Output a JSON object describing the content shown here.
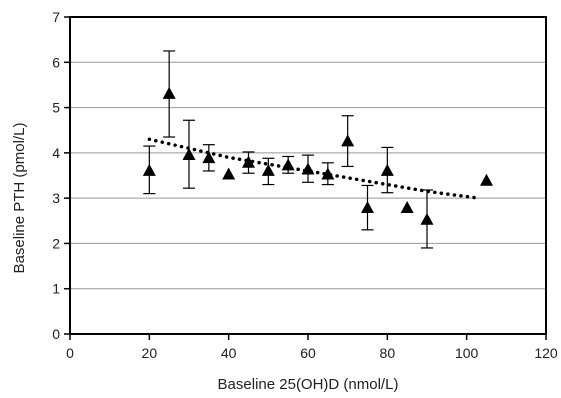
{
  "chart_data": {
    "type": "scatter",
    "title": "",
    "xlabel": "Baseline 25(OH)D (nmol/L)",
    "ylabel": "Baseline PTH (pmol/L)",
    "xlim": [
      0,
      120
    ],
    "ylim": [
      0,
      7
    ],
    "x_ticks": [
      0,
      20,
      40,
      60,
      80,
      100,
      120
    ],
    "y_ticks": [
      0,
      1,
      2,
      3,
      4,
      5,
      6,
      7
    ],
    "grid": "horizontal",
    "legend": "none",
    "marker": "triangle",
    "colors": {
      "marker": "#000000",
      "grid": "#999999",
      "axis": "#000000",
      "trend": "#000000"
    },
    "points": [
      {
        "x": 20,
        "y": 3.6,
        "err_low": 3.1,
        "err_high": 4.15
      },
      {
        "x": 25,
        "y": 5.3,
        "err_low": 4.35,
        "err_high": 6.25
      },
      {
        "x": 30,
        "y": 3.95,
        "err_low": 3.22,
        "err_high": 4.72
      },
      {
        "x": 35,
        "y": 3.88,
        "err_low": 3.6,
        "err_high": 4.18
      },
      {
        "x": 40,
        "y": 3.52,
        "err_low": null,
        "err_high": null
      },
      {
        "x": 45,
        "y": 3.78,
        "err_low": 3.55,
        "err_high": 4.02
      },
      {
        "x": 50,
        "y": 3.6,
        "err_low": 3.3,
        "err_high": 3.88
      },
      {
        "x": 55,
        "y": 3.72,
        "err_low": 3.55,
        "err_high": 3.92
      },
      {
        "x": 60,
        "y": 3.63,
        "err_low": 3.35,
        "err_high": 3.95
      },
      {
        "x": 65,
        "y": 3.52,
        "err_low": 3.3,
        "err_high": 3.78
      },
      {
        "x": 70,
        "y": 4.25,
        "err_low": 3.7,
        "err_high": 4.82
      },
      {
        "x": 75,
        "y": 2.78,
        "err_low": 2.3,
        "err_high": 3.28
      },
      {
        "x": 80,
        "y": 3.6,
        "err_low": 3.12,
        "err_high": 4.12
      },
      {
        "x": 85,
        "y": 2.78,
        "err_low": null,
        "err_high": null
      },
      {
        "x": 90,
        "y": 2.52,
        "err_low": 1.9,
        "err_high": 3.18
      },
      {
        "x": 105,
        "y": 3.38,
        "err_low": null,
        "err_high": null
      }
    ],
    "trendline": {
      "style": "dotted",
      "x": [
        20,
        30,
        40,
        50,
        60,
        70,
        80,
        90,
        103
      ],
      "y": [
        4.3,
        4.1,
        3.9,
        3.75,
        3.6,
        3.45,
        3.3,
        3.15,
        3.0
      ]
    }
  }
}
